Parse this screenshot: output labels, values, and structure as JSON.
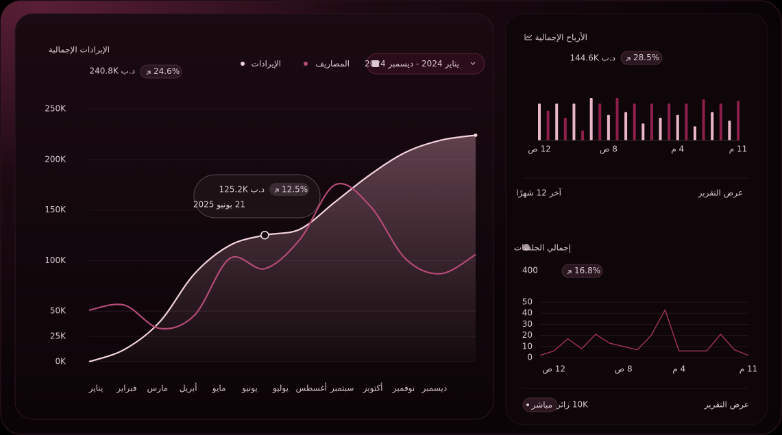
{
  "revenue_card": {
    "title": "الإيرادات الإجمالية",
    "amount": "د.ب 240.8K",
    "change": "24.6%",
    "date_range": "يناير 2024 - ديسمبر 2024",
    "tooltip": {
      "amount": "د.ب 125.2K",
      "change": "12.5%",
      "date": "21 يونيو 2025"
    }
  },
  "profit_card": {
    "title": "الأرباح الإجمالية",
    "amount": "د.ب 144.6K",
    "change": "28.5%",
    "period": "آخر 12 شهرًا",
    "link": "عرض التقرير"
  },
  "sessions_card": {
    "title": "إجمالي الجلسات",
    "amount": "400",
    "change": "16.8%",
    "visitors": "10K زائر",
    "live": "مباشر",
    "link": "عرض التقرير"
  },
  "chart_data": [
    {
      "type": "line",
      "categories": [
        "يناير",
        "فبراير",
        "مارس",
        "أبريل",
        "مايو",
        "يونيو",
        "يوليو",
        "أغسطس",
        "سبتمبر",
        "أكتوبر",
        "نوفمبر",
        "ديسمبر"
      ],
      "series": [
        {
          "name": "الإيرادات",
          "color": "#f2d3de",
          "values": [
            0,
            12000,
            39000,
            87000,
            115000,
            125200,
            131000,
            158000,
            185000,
            207000,
            219000,
            224000
          ]
        },
        {
          "name": "المصاريف",
          "color": "#b54b76",
          "values": [
            51000,
            56000,
            33000,
            46000,
            102000,
            92000,
            121000,
            175000,
            154000,
            102000,
            87000,
            106000
          ]
        }
      ],
      "ylim": [
        0,
        250000
      ],
      "yticks": [
        {
          "value": 0,
          "label": "0K"
        },
        {
          "value": 25000,
          "label": "25K"
        },
        {
          "value": 50000,
          "label": "50K"
        },
        {
          "value": 100000,
          "label": "100K"
        },
        {
          "value": 150000,
          "label": "150K"
        },
        {
          "value": 200000,
          "label": "200K"
        },
        {
          "value": 250000,
          "label": "250K"
        }
      ],
      "grid": true
    },
    {
      "type": "bar",
      "categories": [
        "12 ص",
        null,
        null,
        null,
        null,
        null,
        null,
        null,
        "8 ص",
        null,
        null,
        null,
        null,
        null,
        null,
        null,
        "4 م",
        null,
        null,
        null,
        null,
        null,
        null,
        "11 م"
      ],
      "values": [
        52,
        42,
        52,
        32,
        52,
        14,
        60,
        52,
        36,
        60,
        40,
        52,
        24,
        52,
        32,
        52,
        36,
        52,
        20,
        58,
        40,
        52,
        28,
        56
      ],
      "colors": [
        "#e9b7c9",
        "#8e1f4a"
      ]
    },
    {
      "type": "line",
      "categories": [
        null,
        "12 ص",
        null,
        null,
        null,
        null,
        "8 ص",
        null,
        null,
        null,
        "4 م",
        null,
        null,
        null,
        null,
        "11 م"
      ],
      "series": [
        {
          "color": "#a3335f",
          "values": [
            2,
            6,
            17,
            8,
            21,
            13,
            10,
            7,
            20,
            43,
            6,
            6,
            6,
            21,
            7,
            2
          ]
        }
      ],
      "ylim": [
        0,
        50
      ],
      "yticks": [
        0,
        10,
        20,
        30,
        40,
        50
      ],
      "grid": true
    }
  ]
}
